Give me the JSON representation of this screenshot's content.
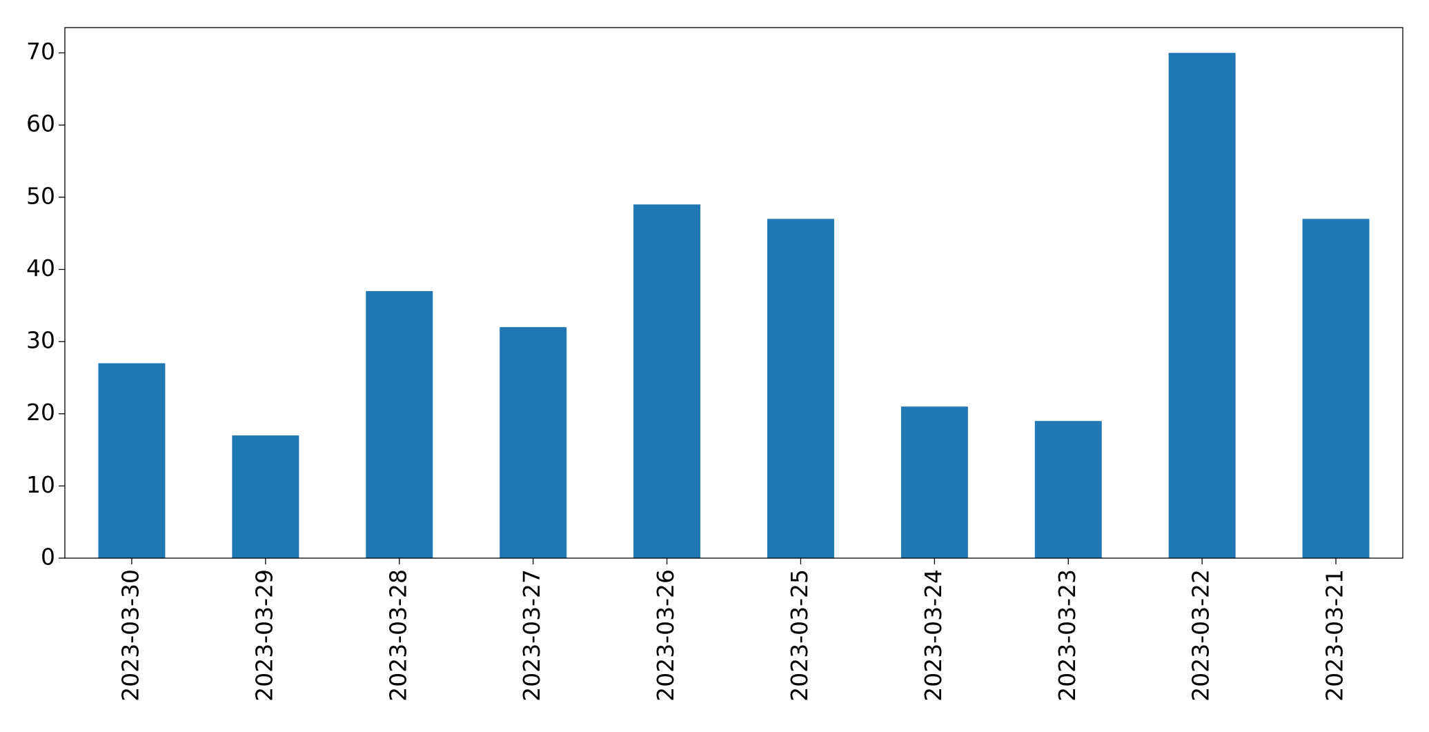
{
  "chart_data": {
    "type": "bar",
    "categories": [
      "2023-03-30",
      "2023-03-29",
      "2023-03-28",
      "2023-03-27",
      "2023-03-26",
      "2023-03-25",
      "2023-03-24",
      "2023-03-23",
      "2023-03-22",
      "2023-03-21"
    ],
    "values": [
      27,
      17,
      37,
      32,
      49,
      47,
      21,
      19,
      70,
      47
    ],
    "color": "#1f77b4",
    "ylim": [
      0,
      73.5
    ],
    "yticks": [
      0,
      10,
      20,
      30,
      40,
      50,
      60,
      70
    ],
    "grid": false
  }
}
